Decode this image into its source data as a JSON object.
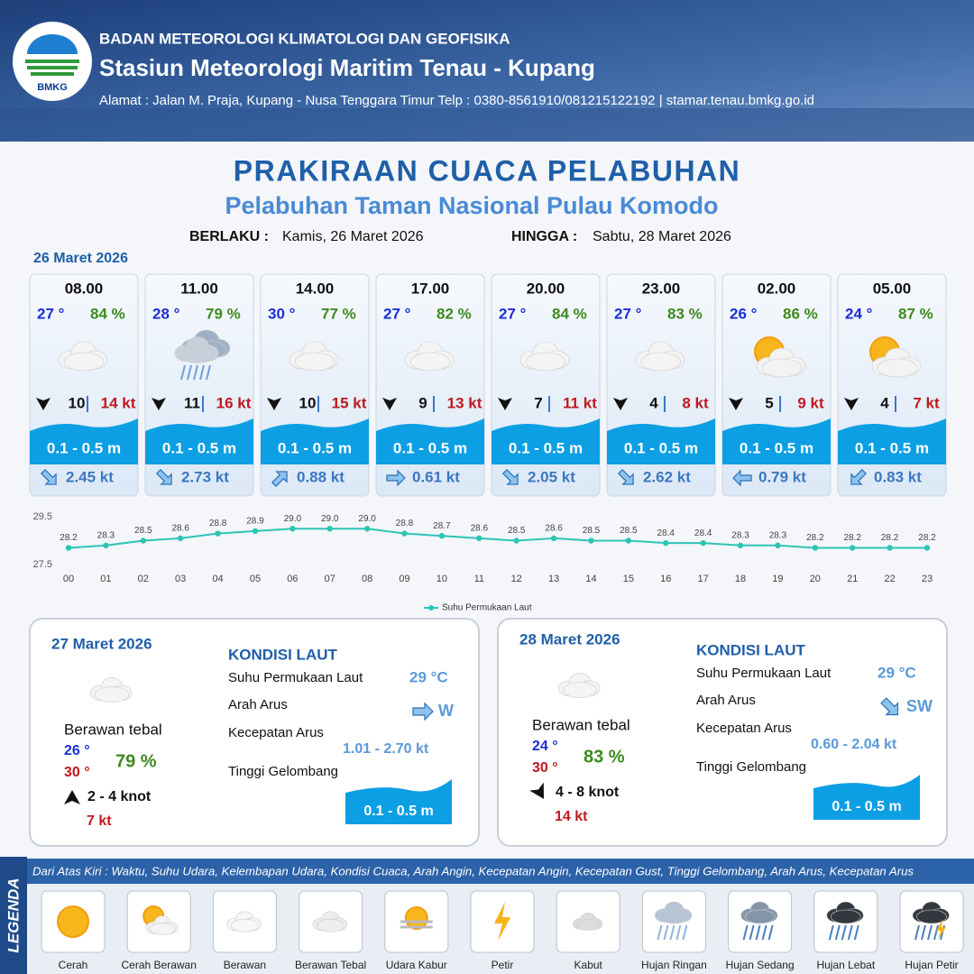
{
  "header": {
    "logo": "BMKG",
    "agency": "BADAN METEOROLOGI KLIMATOLOGI DAN GEOFISIKA",
    "station": "Stasiun Meteorologi Maritim Tenau - Kupang",
    "address": "Alamat : Jalan M. Praja, Kupang - Nusa Tenggara Timur Telp : 0380-8561910/081215122192  | stamar.tenau.bmkg.go.id"
  },
  "title": "PRAKIRAAN CUACA PELABUHAN",
  "subtitle": "Pelabuhan Taman Nasional Pulau Komodo",
  "valid_from_label": "BERLAKU :",
  "valid_from": "Kamis, 26 Maret 2026",
  "valid_to_label": "HINGGA :",
  "valid_to": "Sabtu, 28 Maret 2026",
  "day1_date": "26 Maret 2026",
  "forecast": [
    {
      "time": "08.00",
      "temp": "27 °",
      "humidity": "84 %",
      "wind": "10",
      "gust": "14 kt",
      "wave": "0.1 - 0.5 m",
      "current": "2.45 kt"
    },
    {
      "time": "11.00",
      "temp": "28 °",
      "humidity": "79 %",
      "wind": "11",
      "gust": "16 kt",
      "wave": "0.1 - 0.5 m",
      "current": "2.73 kt"
    },
    {
      "time": "14.00",
      "temp": "30 °",
      "humidity": "77 %",
      "wind": "10",
      "gust": "15 kt",
      "wave": "0.1 - 0.5 m",
      "current": "0.88 kt"
    },
    {
      "time": "17.00",
      "temp": "27 °",
      "humidity": "82 %",
      "wind": "9",
      "gust": "13 kt",
      "wave": "0.1 - 0.5 m",
      "current": "0.61 kt"
    },
    {
      "time": "20.00",
      "temp": "27 °",
      "humidity": "84 %",
      "wind": "7",
      "gust": "11 kt",
      "wave": "0.1 - 0.5 m",
      "current": "2.05 kt"
    },
    {
      "time": "23.00",
      "temp": "27 °",
      "humidity": "83 %",
      "wind": "4",
      "gust": "8 kt",
      "wave": "0.1 - 0.5 m",
      "current": "2.62 kt"
    },
    {
      "time": "02.00",
      "temp": "26 °",
      "humidity": "86 %",
      "wind": "5",
      "gust": "9 kt",
      "wave": "0.1 - 0.5 m",
      "current": "0.79 kt"
    },
    {
      "time": "05.00",
      "temp": "24 °",
      "humidity": "87 %",
      "wind": "4",
      "gust": "7 kt",
      "wave": "0.1 - 0.5 m",
      "current": "0.83 kt"
    }
  ],
  "chart_data": {
    "type": "line",
    "categories": [
      "00",
      "01",
      "02",
      "03",
      "04",
      "05",
      "06",
      "07",
      "08",
      "09",
      "10",
      "11",
      "12",
      "13",
      "14",
      "15",
      "16",
      "17",
      "18",
      "19",
      "20",
      "21",
      "22",
      "23"
    ],
    "series": [
      {
        "name": "Suhu Permukaan Laut",
        "color": "#2ec4b6",
        "values": [
          28.2,
          28.3,
          28.5,
          28.6,
          28.8,
          28.9,
          29.0,
          29.0,
          29.0,
          28.8,
          28.7,
          28.6,
          28.5,
          28.6,
          28.5,
          28.5,
          28.4,
          28.4,
          28.3,
          28.3,
          28.2,
          28.2,
          28.2,
          28.2
        ],
        "value_labels": [
          "28.2",
          "28.3",
          "28.5",
          "28.6",
          "28.8",
          "28.9",
          "29.0",
          "29.0",
          "29.0",
          "28.8",
          "28.7",
          "28.6",
          "28.5",
          "28.6",
          "28.5",
          "28.5",
          "28.4",
          "28.4",
          "28.3",
          "28.3",
          "28.2",
          "28.2",
          "28.2",
          "28.2"
        ]
      }
    ],
    "ylim": [
      27.5,
      29.5
    ],
    "yticks": [
      27.5,
      29.5
    ],
    "legend": "bottom"
  },
  "days": [
    {
      "date": "27 Maret 2026",
      "sea_heading": "KONDISI LAUT",
      "sst_label": "Suhu Permukaan Laut",
      "sst": "29 °C",
      "current_dir_label": "Arah Arus",
      "current_dir": "W",
      "current_speed_label": "Kecepatan Arus",
      "current_speed": "1.01 - 2.70 kt",
      "wave_label": "Tinggi Gelombang",
      "wave": "0.1 - 0.5 m",
      "condition": "Berawan tebal",
      "temp_min": "26 °",
      "temp_max": "30 °",
      "humidity": "79 %",
      "wind": "2  - 4 knot",
      "gust": "7 kt"
    },
    {
      "date": "28 Maret 2026",
      "sea_heading": "KONDISI LAUT",
      "sst_label": "Suhu Permukaan Laut",
      "sst": "29 °C",
      "current_dir_label": "Arah Arus",
      "current_dir": "SW",
      "current_speed_label": "Kecepatan Arus",
      "current_speed": "0.60 - 2.04 kt",
      "wave_label": "Tinggi Gelombang",
      "wave": "0.1 - 0.5 m",
      "condition": "Berawan tebal",
      "temp_min": "24 °",
      "temp_max": "30 °",
      "humidity": "83 %",
      "wind": "4  - 8 knot",
      "gust": "14 kt"
    }
  ],
  "legend": {
    "heading": "LEGENDA",
    "description": "Dari Atas Kiri : Waktu, Suhu Udara, Kelembapan Udara, Kondisi Cuaca, Arah Angin, Kecepatan Angin, Kecepatan Gust, Tinggi Gelombang, Arah Arus, Kecepatan Arus",
    "items": [
      "Cerah",
      "Cerah Berawan",
      "Berawan",
      "Berawan Tebal",
      "Udara Kabur",
      "Petir",
      "Kabut",
      "Hujan Ringan",
      "Hujan Sedang",
      "Hujan Lebat",
      "Hujan Petir"
    ]
  }
}
